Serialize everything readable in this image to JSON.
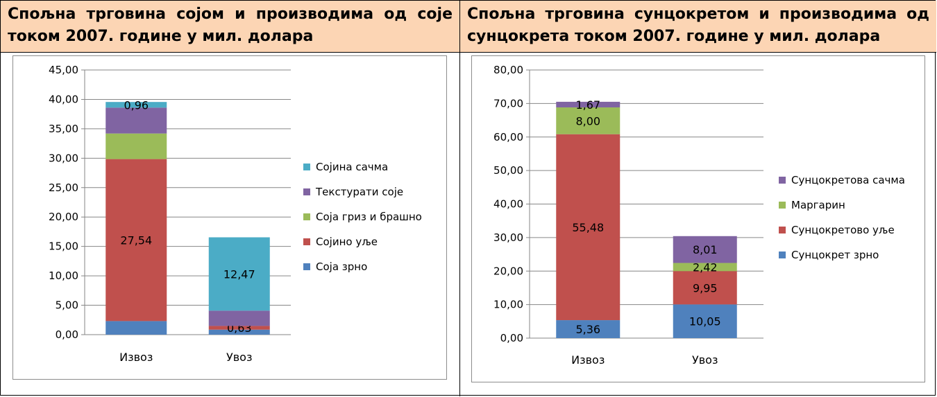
{
  "panels": [
    {
      "title_line1": "Спољна трговина сојом и производима од соје",
      "title_line2": "током 2007. године у мил. долара"
    },
    {
      "title_line1": "Спољна трговина сунцокретом и производима од",
      "title_line2": "сунцокрета током 2007. године у мил. долара"
    }
  ],
  "chart_data": [
    {
      "type": "bar",
      "stacked": true,
      "title": "Спољна трговина сојом и производима од соје током 2007. године у мил. долара",
      "categories": [
        "Извоз",
        "Увоз"
      ],
      "y_ticks": [
        "0,00",
        "5,00",
        "10,00",
        "15,00",
        "20,00",
        "25,00",
        "30,00",
        "35,00",
        "40,00",
        "45,00"
      ],
      "ylim": [
        0,
        45
      ],
      "grid": true,
      "legend_position": "right",
      "series": [
        {
          "name": "Соја зрно",
          "color": "#4f81bd",
          "values": [
            2.31,
            0.85
          ],
          "labels": [
            "",
            ""
          ]
        },
        {
          "name": "Сојино уље",
          "color": "#c0504d",
          "values": [
            27.54,
            0.63
          ],
          "labels": [
            "27,54",
            "0,63"
          ]
        },
        {
          "name": "Соја гриз и брашно",
          "color": "#9bbb59",
          "values": [
            4.35,
            0.0
          ],
          "labels": [
            "",
            ""
          ]
        },
        {
          "name": "Текстурати соје",
          "color": "#8064a2",
          "values": [
            4.4,
            2.6
          ],
          "labels": [
            "",
            ""
          ]
        },
        {
          "name": "Сојина сачма",
          "color": "#4bacc6",
          "values": [
            0.96,
            12.47
          ],
          "labels": [
            "0,96",
            "12,47"
          ]
        }
      ]
    },
    {
      "type": "bar",
      "stacked": true,
      "title": "Спољна трговина сунцокретом и производима од сунцокрета током 2007. године у мил. долара",
      "categories": [
        "Извоз",
        "Увоз"
      ],
      "y_ticks": [
        "0,00",
        "10,00",
        "20,00",
        "30,00",
        "40,00",
        "50,00",
        "60,00",
        "70,00",
        "80,00"
      ],
      "ylim": [
        0,
        80
      ],
      "grid": true,
      "legend_position": "right",
      "series": [
        {
          "name": "Сунцокрет зрно",
          "color": "#4f81bd",
          "values": [
            5.36,
            10.05
          ],
          "labels": [
            "5,36",
            "10,05"
          ]
        },
        {
          "name": "Сунцокретово уље",
          "color": "#c0504d",
          "values": [
            55.48,
            9.95
          ],
          "labels": [
            "55,48",
            "9,95"
          ]
        },
        {
          "name": "Маргарин",
          "color": "#9bbb59",
          "values": [
            8.0,
            2.42
          ],
          "labels": [
            "8,00",
            "2,42"
          ]
        },
        {
          "name": "Сунцокретова сачма",
          "color": "#8064a2",
          "values": [
            1.67,
            8.01
          ],
          "labels": [
            "1,67",
            "8,01"
          ]
        }
      ]
    }
  ]
}
